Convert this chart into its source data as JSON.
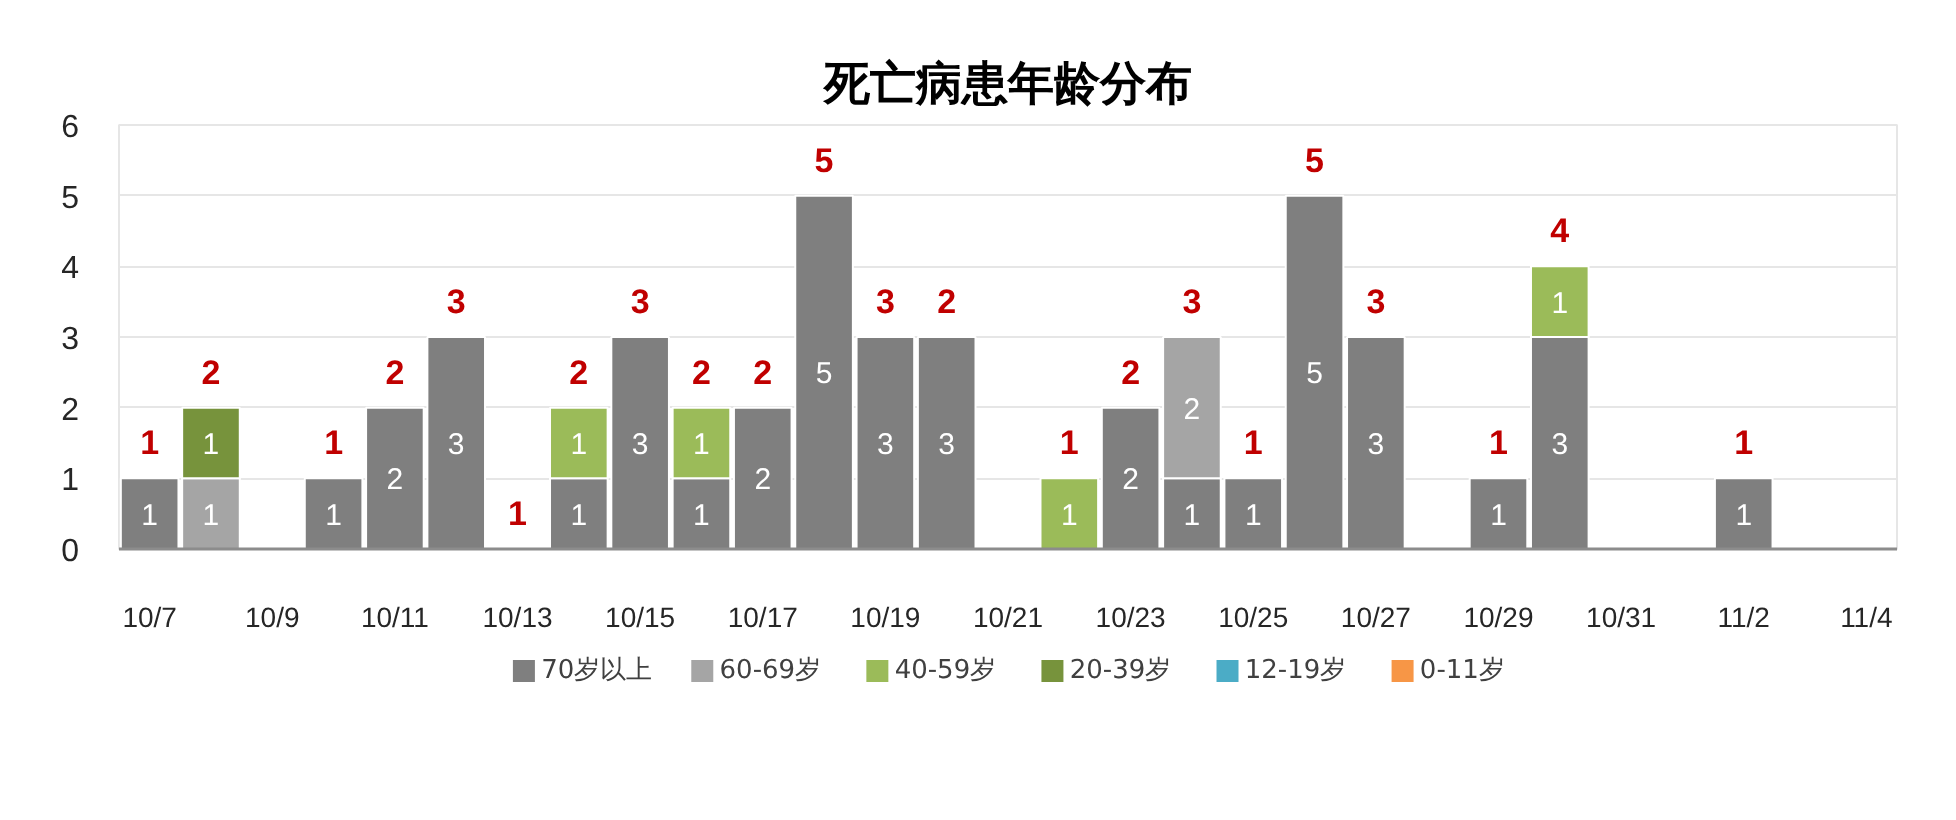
{
  "chart_data": {
    "type": "bar",
    "title": "死亡病患年龄分布",
    "stacked": true,
    "categories": [
      "10/7",
      null,
      "10/9",
      null,
      "10/11",
      null,
      "10/13",
      null,
      "10/15",
      null,
      "10/17",
      null,
      "10/19",
      null,
      "10/21",
      null,
      "10/23",
      null,
      "10/25",
      null,
      "10/27",
      null,
      "10/29",
      null,
      "10/31",
      null,
      "11/2",
      null,
      "11/4"
    ],
    "series": [
      {
        "name": "70岁以上",
        "color": "#7f7f7f",
        "values": [
          1,
          null,
          null,
          1,
          2,
          3,
          null,
          1,
          3,
          1,
          2,
          5,
          3,
          3,
          null,
          null,
          2,
          1,
          1,
          5,
          3,
          null,
          1,
          3,
          null,
          null,
          1,
          null,
          null
        ]
      },
      {
        "name": "60-69岁",
        "color": "#a5a5a5",
        "values": [
          null,
          1,
          null,
          null,
          null,
          null,
          null,
          null,
          null,
          null,
          null,
          null,
          null,
          null,
          null,
          null,
          null,
          2,
          null,
          null,
          null,
          null,
          null,
          null,
          null,
          null,
          null,
          null,
          null
        ]
      },
      {
        "name": "40-59岁",
        "color": "#9bbb59",
        "values": [
          null,
          null,
          null,
          null,
          null,
          null,
          null,
          1,
          null,
          1,
          null,
          null,
          null,
          null,
          null,
          1,
          null,
          null,
          null,
          null,
          null,
          null,
          null,
          1,
          null,
          null,
          null,
          null,
          null
        ]
      },
      {
        "name": "20-39岁",
        "color": "#77933c",
        "values": [
          null,
          1,
          null,
          null,
          null,
          null,
          null,
          null,
          null,
          null,
          null,
          null,
          null,
          null,
          null,
          null,
          null,
          null,
          null,
          null,
          null,
          null,
          null,
          null,
          null,
          null,
          null,
          null,
          null
        ]
      },
      {
        "name": "12-19岁",
        "color": "#4bacc6",
        "values": [
          null,
          null,
          null,
          null,
          null,
          null,
          null,
          null,
          null,
          null,
          null,
          null,
          null,
          null,
          null,
          null,
          null,
          null,
          null,
          null,
          null,
          null,
          null,
          null,
          null,
          null,
          null,
          null,
          null
        ]
      },
      {
        "name": "0-11岁",
        "color": "#f79646",
        "values": [
          null,
          null,
          null,
          null,
          null,
          null,
          null,
          null,
          null,
          null,
          null,
          null,
          null,
          null,
          null,
          null,
          null,
          null,
          null,
          null,
          null,
          null,
          null,
          null,
          null,
          null,
          null,
          null,
          null
        ]
      }
    ],
    "totals": [
      "1",
      "2",
      null,
      "1",
      "2",
      "3",
      "1",
      "2",
      "3",
      "2",
      "2",
      "5",
      "3",
      "2",
      null,
      "1",
      "2",
      "3",
      "1",
      "5",
      "3",
      null,
      "1",
      "4",
      null,
      null,
      "1",
      null,
      null
    ],
    "data_labels": true,
    "ylim": [
      0,
      6
    ],
    "yticks": [
      0,
      1,
      2,
      3,
      4,
      5,
      6
    ],
    "grid": "y",
    "legend": "bottom"
  }
}
